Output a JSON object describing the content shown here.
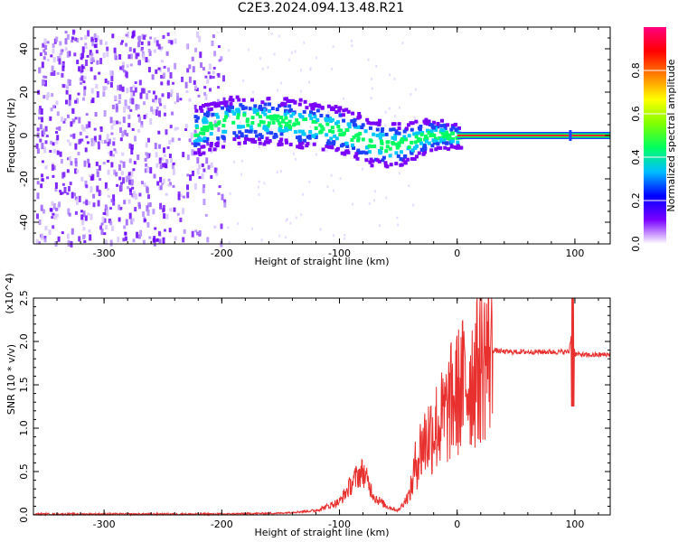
{
  "title": "C2E3.2024.094.13.48.R21",
  "colors": {
    "snr_line": "#e8312f",
    "axis": "#000000",
    "carrier_line": "#ff2a2a",
    "scatter_low": "#7a00ff",
    "scatter_mid": "#00e0ff",
    "scatter_high": "#00ff40"
  },
  "chart_data": [
    {
      "type": "heatmap",
      "xlabel": "Height of straight line (km)",
      "ylabel": "Frequency (Hz)",
      "xlim": [
        -360,
        130
      ],
      "ylim": [
        -50,
        50
      ],
      "xticks": [
        -300,
        -200,
        -100,
        0,
        100
      ],
      "yticks": [
        -40,
        -20,
        0,
        20,
        40
      ],
      "colorbar": {
        "label": "Normalized spectral amplitude",
        "range": [
          0.0,
          1.0
        ],
        "ticks": [
          "0.0",
          "0.2",
          "0.4",
          "0.6",
          "0.8"
        ],
        "colormap": [
          "#ffffff",
          "#7a00ff",
          "#0000ff",
          "#00c0ff",
          "#00ff60",
          "#80ff00",
          "#ffff00",
          "#ff8000",
          "#ff0000",
          "#ff0080"
        ]
      },
      "ridge": {
        "x": [
          -225,
          -210,
          -190,
          -170,
          -150,
          -130,
          -110,
          -90,
          -75,
          -60,
          -45,
          -30,
          -20,
          -10,
          0
        ],
        "y": [
          2,
          5,
          8,
          8,
          7,
          6,
          4,
          1,
          -2,
          -4,
          -3,
          0,
          1,
          1,
          0
        ]
      },
      "carrier": {
        "x_start": 0,
        "x_end": 130,
        "y": 0
      },
      "grid": false
    },
    {
      "type": "line",
      "xlabel": "Height of straight line (km)",
      "ylabel": "SNR (10 * v/v)",
      "y_multiplier": "(x10^4)",
      "xlim": [
        -360,
        130
      ],
      "ylim": [
        0.0,
        2.5
      ],
      "xticks": [
        -300,
        -200,
        -100,
        0,
        100
      ],
      "yticks": [
        "0.0",
        "0.5",
        "1.0",
        "1.5",
        "2.0",
        "2.5"
      ],
      "series": [
        {
          "x": [
            -360,
            -250,
            -200,
            -150,
            -120,
            -100,
            -95,
            -90,
            -85,
            -80,
            -75,
            -70,
            -60,
            -50,
            -40,
            -35,
            -30,
            -25,
            -20,
            -15,
            -10,
            -5,
            0,
            5,
            10,
            20,
            25,
            30,
            40,
            60,
            80,
            95,
            98,
            100,
            105,
            110,
            130
          ],
          "y": [
            0.01,
            0.01,
            0.01,
            0.02,
            0.05,
            0.15,
            0.25,
            0.35,
            0.45,
            0.5,
            0.35,
            0.2,
            0.1,
            0.05,
            0.25,
            0.6,
            0.8,
            0.9,
            1.0,
            1.05,
            1.15,
            1.3,
            1.4,
            1.5,
            1.55,
            1.75,
            1.85,
            1.9,
            1.88,
            1.88,
            1.88,
            1.88,
            2.2,
            1.85,
            1.85,
            1.84,
            1.85
          ]
        }
      ],
      "grid": false
    }
  ]
}
